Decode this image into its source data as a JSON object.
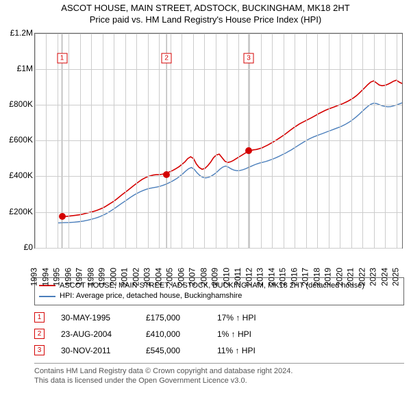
{
  "title": {
    "line1": "ASCOT HOUSE, MAIN STREET, ADSTOCK, BUCKINGHAM, MK18 2HT",
    "line2": "Price paid vs. HM Land Registry's House Price Index (HPI)"
  },
  "chart": {
    "type": "line",
    "background_color": "#ffffff",
    "grid_color": "#cccccc",
    "axis_color": "#666666",
    "label_fontsize": 12,
    "x_axis": {
      "min": 1993,
      "max": 2025.5,
      "ticks": [
        1993,
        1994,
        1995,
        1996,
        1997,
        1998,
        1999,
        2000,
        2001,
        2002,
        2003,
        2004,
        2005,
        2006,
        2007,
        2008,
        2009,
        2010,
        2011,
        2012,
        2013,
        2014,
        2015,
        2016,
        2017,
        2018,
        2019,
        2020,
        2021,
        2022,
        2023,
        2024,
        2025
      ]
    },
    "y_axis": {
      "min": 0,
      "max": 1200000,
      "ticks": [
        {
          "v": 0,
          "label": "£0"
        },
        {
          "v": 200000,
          "label": "£200K"
        },
        {
          "v": 400000,
          "label": "£400K"
        },
        {
          "v": 600000,
          "label": "£600K"
        },
        {
          "v": 800000,
          "label": "£800K"
        },
        {
          "v": 1000000,
          "label": "£1M"
        },
        {
          "v": 1200000,
          "label": "£1.2M"
        }
      ]
    },
    "series": [
      {
        "name": "property",
        "color": "#d40000",
        "line_width": 1.6,
        "legend": "ASCOT HOUSE, MAIN STREET, ADSTOCK, BUCKINGHAM, MK18 2HT (detached house)",
        "x_start": 1995.4,
        "points": [
          175000,
          176000,
          177000,
          179000,
          181000,
          183000,
          185000,
          188000,
          192000,
          196000,
          200000,
          204000,
          209000,
          215000,
          222000,
          230000,
          240000,
          250000,
          260000,
          272000,
          285000,
          298000,
          310000,
          322000,
          335000,
          348000,
          360000,
          372000,
          383000,
          392000,
          399000,
          404000,
          408000,
          410000,
          410000,
          412000,
          416000,
          422000,
          428000,
          436000,
          445000,
          455000,
          468000,
          482000,
          500000,
          510000,
          500000,
          470000,
          450000,
          440000,
          445000,
          460000,
          480000,
          505000,
          520000,
          525000,
          505000,
          485000,
          478000,
          482000,
          490000,
          500000,
          510000,
          520000,
          530000,
          538000,
          545000,
          549000,
          551000,
          555000,
          560000,
          568000,
          576000,
          585000,
          594000,
          604000,
          614000,
          625000,
          636000,
          648000,
          660000,
          672000,
          683000,
          693000,
          702000,
          710000,
          718000,
          726000,
          735000,
          744000,
          753000,
          761000,
          769000,
          776000,
          782000,
          788000,
          794000,
          800000,
          806000,
          813000,
          821000,
          830000,
          840000,
          852000,
          866000,
          882000,
          898000,
          914000,
          928000,
          935000,
          924000,
          912000,
          908000,
          910000,
          916000,
          924000,
          933000,
          939000,
          928000,
          920000
        ]
      },
      {
        "name": "hpi",
        "color": "#4a7ebb",
        "line_width": 1.4,
        "legend": "HPI: Average price, detached house, Buckinghamshire",
        "x_start": 1995.0,
        "points": [
          140000,
          140500,
          141000,
          141500,
          142000,
          143000,
          144000,
          145500,
          147500,
          150000,
          153000,
          156500,
          160500,
          165000,
          170000,
          176000,
          183000,
          191000,
          200000,
          210000,
          221000,
          232000,
          243000,
          254000,
          265000,
          276000,
          287000,
          297000,
          306000,
          314000,
          321000,
          327000,
          332000,
          335000,
          338000,
          341000,
          345000,
          350000,
          356000,
          363000,
          371000,
          380000,
          390000,
          402000,
          415000,
          430000,
          443000,
          450000,
          440000,
          420000,
          405000,
          395000,
          392000,
          395000,
          402000,
          412000,
          425000,
          440000,
          452000,
          458000,
          452000,
          442000,
          435000,
          432000,
          433000,
          437000,
          443000,
          450000,
          457000,
          464000,
          470000,
          475000,
          479000,
          483000,
          488000,
          494000,
          500000,
          507000,
          514000,
          522000,
          530000,
          539000,
          548000,
          558000,
          568000,
          578000,
          588000,
          598000,
          607000,
          615000,
          622000,
          628000,
          634000,
          640000,
          646000,
          652000,
          658000,
          664000,
          670000,
          676000,
          683000,
          691000,
          700000,
          710000,
          722000,
          735000,
          749000,
          764000,
          779000,
          793000,
          804000,
          810000,
          808000,
          802000,
          796000,
          792000,
          790000,
          791000,
          795000,
          800000,
          806000,
          812000
        ]
      }
    ],
    "event_markers": [
      {
        "n": "1",
        "x": 1995.4,
        "y_marker": 1060000,
        "y_dot": 175000,
        "color": "#d40000"
      },
      {
        "n": "2",
        "x": 2004.65,
        "y_marker": 1060000,
        "y_dot": 410000,
        "color": "#d40000"
      },
      {
        "n": "3",
        "x": 2011.92,
        "y_marker": 1060000,
        "y_dot": 545000,
        "color": "#d40000"
      }
    ]
  },
  "legend_title": "",
  "transactions": [
    {
      "n": "1",
      "color": "#d40000",
      "date": "30-MAY-1995",
      "price": "£175,000",
      "pct": "17% ↑ HPI"
    },
    {
      "n": "2",
      "color": "#d40000",
      "date": "23-AUG-2004",
      "price": "£410,000",
      "pct": "1% ↑ HPI"
    },
    {
      "n": "3",
      "color": "#d40000",
      "date": "30-NOV-2011",
      "price": "£545,000",
      "pct": "11% ↑ HPI"
    }
  ],
  "footnote": {
    "line1": "Contains HM Land Registry data © Crown copyright and database right 2024.",
    "line2": "This data is licensed under the Open Government Licence v3.0."
  }
}
